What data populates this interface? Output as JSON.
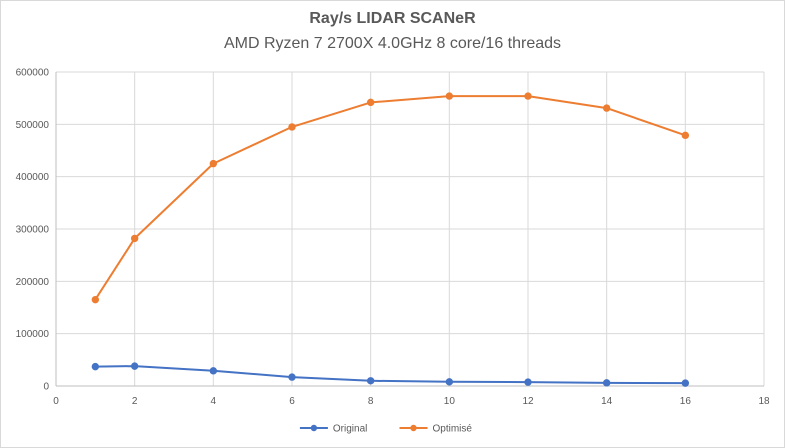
{
  "chart_data": {
    "type": "scatter",
    "title": "Ray/s LIDAR SCANeR",
    "subtitle": "AMD Ryzen 7 2700X 4.0GHz 8 core/16 threads",
    "xlabel": "",
    "ylabel": "",
    "xlim": [
      0,
      18
    ],
    "ylim": [
      0,
      600000
    ],
    "x_ticks": [
      0,
      2,
      4,
      6,
      8,
      10,
      12,
      14,
      16,
      18
    ],
    "y_ticks": [
      0,
      100000,
      200000,
      300000,
      400000,
      500000,
      600000
    ],
    "grid": true,
    "legend_position": "bottom",
    "series": [
      {
        "name": "Original",
        "color": "#4472c4",
        "x": [
          1,
          2,
          4,
          6,
          8,
          10,
          12,
          14,
          16
        ],
        "y": [
          37000,
          38000,
          29000,
          17000,
          10000,
          8000,
          7500,
          6000,
          5500
        ]
      },
      {
        "name": "Optimisé",
        "color": "#ed7d31",
        "x": [
          1,
          2,
          4,
          6,
          8,
          10,
          12,
          14,
          16
        ],
        "y": [
          165000,
          282000,
          425000,
          495000,
          542000,
          554000,
          554000,
          531000,
          479000
        ]
      }
    ]
  }
}
